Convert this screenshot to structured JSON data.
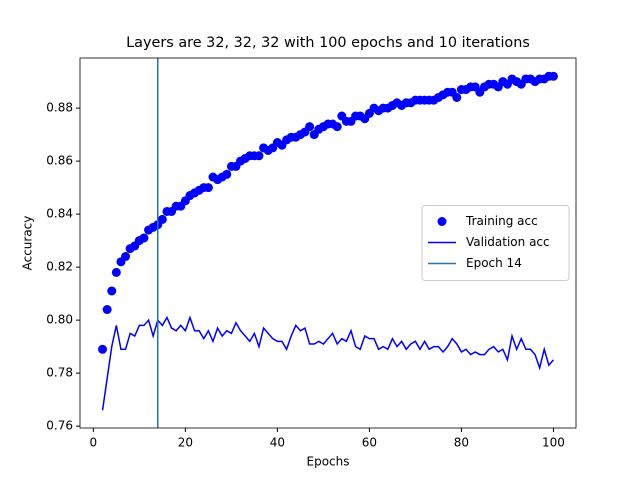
{
  "chart_data": {
    "type": "line",
    "title": "Layers are 32, 32, 32 with 100 epochs and 10 iterations",
    "x_label": "Epochs",
    "y_label": "Accuracy",
    "x": [
      2,
      3,
      4,
      5,
      6,
      7,
      8,
      9,
      10,
      11,
      12,
      13,
      14,
      15,
      16,
      17,
      18,
      19,
      20,
      21,
      22,
      23,
      24,
      25,
      26,
      27,
      28,
      29,
      30,
      31,
      32,
      33,
      34,
      35,
      36,
      37,
      38,
      39,
      40,
      41,
      42,
      43,
      44,
      45,
      46,
      47,
      48,
      49,
      50,
      51,
      52,
      53,
      54,
      55,
      56,
      57,
      58,
      59,
      60,
      61,
      62,
      63,
      64,
      65,
      66,
      67,
      68,
      69,
      70,
      71,
      72,
      73,
      74,
      75,
      76,
      77,
      78,
      79,
      80,
      81,
      82,
      83,
      84,
      85,
      86,
      87,
      88,
      89,
      90,
      91,
      92,
      93,
      94,
      95,
      96,
      97,
      98,
      99,
      100
    ],
    "series": [
      {
        "name": "Training acc",
        "color": "#0000ff",
        "style": "markers",
        "values": [
          0.789,
          0.804,
          0.811,
          0.818,
          0.822,
          0.824,
          0.827,
          0.828,
          0.83,
          0.831,
          0.834,
          0.835,
          0.836,
          0.838,
          0.841,
          0.841,
          0.843,
          0.843,
          0.845,
          0.847,
          0.848,
          0.849,
          0.85,
          0.85,
          0.854,
          0.853,
          0.854,
          0.855,
          0.858,
          0.858,
          0.86,
          0.861,
          0.862,
          0.862,
          0.862,
          0.865,
          0.864,
          0.865,
          0.867,
          0.866,
          0.868,
          0.869,
          0.869,
          0.87,
          0.871,
          0.873,
          0.87,
          0.872,
          0.873,
          0.874,
          0.874,
          0.873,
          0.877,
          0.875,
          0.875,
          0.877,
          0.877,
          0.876,
          0.878,
          0.88,
          0.879,
          0.88,
          0.88,
          0.881,
          0.882,
          0.881,
          0.882,
          0.882,
          0.883,
          0.883,
          0.883,
          0.883,
          0.883,
          0.884,
          0.885,
          0.886,
          0.886,
          0.884,
          0.887,
          0.887,
          0.888,
          0.888,
          0.886,
          0.888,
          0.889,
          0.889,
          0.888,
          0.89,
          0.889,
          0.891,
          0.89,
          0.889,
          0.891,
          0.891,
          0.89,
          0.891,
          0.891,
          0.892,
          0.892
        ]
      },
      {
        "name": "Validation acc",
        "color": "#0000ff",
        "style": "line",
        "values": [
          0.766,
          0.778,
          0.79,
          0.798,
          0.789,
          0.789,
          0.795,
          0.794,
          0.798,
          0.798,
          0.8,
          0.794,
          0.8,
          0.798,
          0.801,
          0.797,
          0.796,
          0.798,
          0.796,
          0.801,
          0.796,
          0.796,
          0.793,
          0.796,
          0.792,
          0.797,
          0.794,
          0.796,
          0.795,
          0.799,
          0.796,
          0.794,
          0.792,
          0.795,
          0.79,
          0.797,
          0.795,
          0.793,
          0.792,
          0.792,
          0.789,
          0.794,
          0.798,
          0.796,
          0.797,
          0.791,
          0.791,
          0.792,
          0.791,
          0.793,
          0.795,
          0.791,
          0.793,
          0.792,
          0.796,
          0.79,
          0.789,
          0.794,
          0.793,
          0.793,
          0.789,
          0.79,
          0.789,
          0.793,
          0.79,
          0.792,
          0.789,
          0.791,
          0.792,
          0.789,
          0.792,
          0.789,
          0.79,
          0.79,
          0.788,
          0.79,
          0.793,
          0.791,
          0.788,
          0.789,
          0.787,
          0.788,
          0.787,
          0.787,
          0.789,
          0.79,
          0.788,
          0.789,
          0.785,
          0.794,
          0.789,
          0.793,
          0.789,
          0.789,
          0.787,
          0.782,
          0.789,
          0.783,
          0.785
        ]
      }
    ],
    "vline": {
      "name": "Epoch 14",
      "x": 14,
      "color": "#1f77b4"
    },
    "xlim": [
      -2.9,
      104.9
    ],
    "ylim": [
      0.7593,
      0.8989
    ],
    "xticks": [
      0,
      20,
      40,
      60,
      80,
      100
    ],
    "yticks": [
      0.76,
      0.78,
      {
        "value": 0.8,
        "label": "0.80"
      },
      0.82,
      0.84,
      0.86,
      0.88
    ],
    "legend": "center right",
    "grid": false
  }
}
